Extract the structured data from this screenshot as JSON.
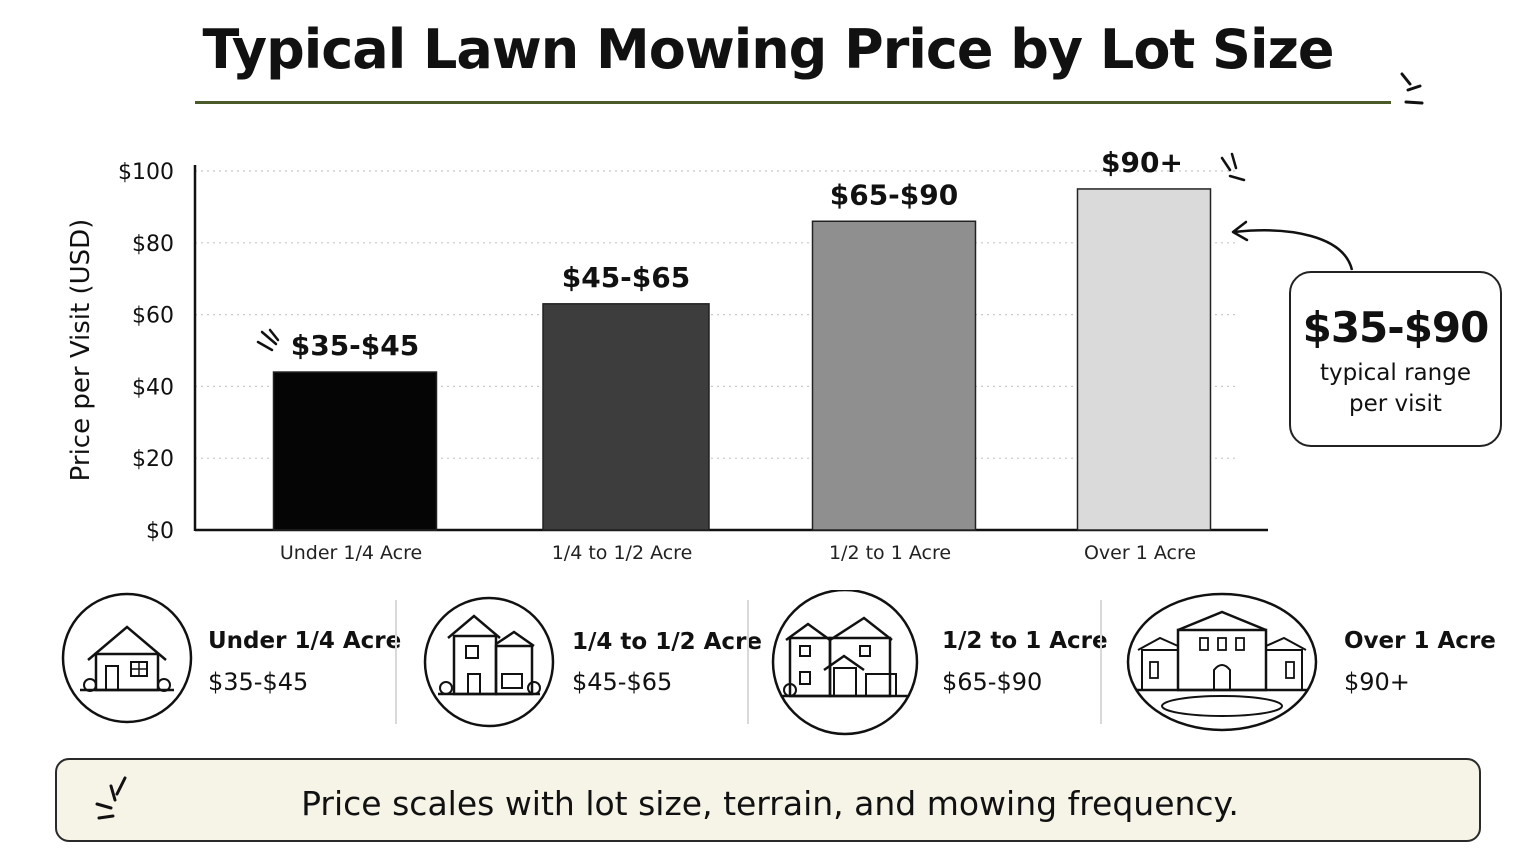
{
  "title": "Typical Lawn Mowing Price by Lot Size",
  "chart_data": {
    "type": "bar",
    "categories": [
      "Under 1/4 Acre",
      "1/4 to 1/2 Acre",
      "1/2 to 1 Acre",
      "Over 1 Acre"
    ],
    "values": [
      44,
      63,
      86,
      95
    ],
    "data_labels": [
      "$35-$45",
      "$45-$65",
      "$65-$90",
      "$90+"
    ],
    "bar_colors": [
      "#050505",
      "#3d3d3d",
      "#8f8f8f",
      "#dadada"
    ],
    "ylabel": "Price per Visit (USD)",
    "ylim": [
      0,
      100
    ],
    "yticks": [
      0,
      20,
      40,
      60,
      80,
      100
    ],
    "ytick_labels": [
      "$0",
      "$20",
      "$40",
      "$60",
      "$80",
      "$100"
    ],
    "grid": "horizontal dotted"
  },
  "callout": {
    "value": "$35-$90",
    "line1": "typical range",
    "line2": "per visit"
  },
  "tiers": [
    {
      "label": "Under 1/4 Acre",
      "price": "$35-$45",
      "icon": "small-house-icon"
    },
    {
      "label": "1/4 to 1/2 Acre",
      "price": "$45-$65",
      "icon": "two-story-house-icon"
    },
    {
      "label": "1/2 to 1 Acre",
      "price": "$65-$90",
      "icon": "large-house-icon"
    },
    {
      "label": "Over 1 Acre",
      "price": "$90+",
      "icon": "estate-icon"
    }
  ],
  "footer": "Price scales with lot size, terrain, and mowing frequency.",
  "colors": {
    "accent_rule": "#4a5a2a",
    "footer_bg": "#f6f3e7"
  }
}
